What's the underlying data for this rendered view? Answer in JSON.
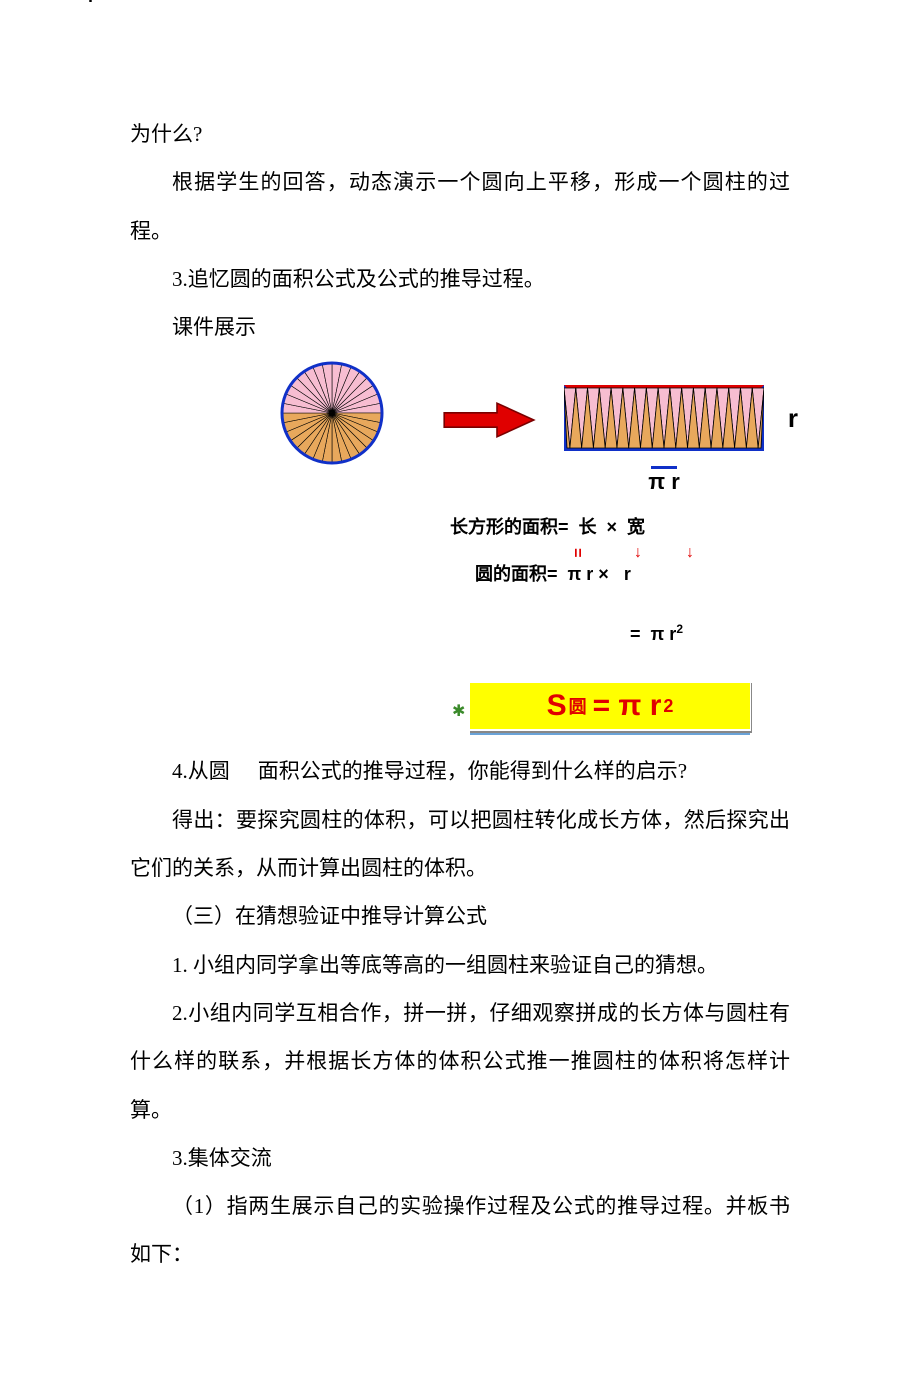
{
  "text": {
    "p1": "为什么?",
    "p2": "根据学生的回答，动态演示一个圆向上平移，形成一个圆柱的过程。",
    "p3": "3.追忆圆的面积公式及公式的推导过程。",
    "p4": "课件展示",
    "p5a": "4.从圆",
    "p5b": "面积公式的推导过程，你能得到什么样的启示?",
    "p6": "得出：要探究圆柱的体积，可以把圆柱转化成长方体，然后探究出它们的关系，从而计算出圆柱的体积。",
    "p7": "（三）在猜想验证中推导计算公式",
    "p8": "1. 小组内同学拿出等底等高的一组圆柱来验证自己的猜想。",
    "p9": "2.小组内同学互相合作，拼一拼，仔细观察拼成的长方体与圆柱有什么样的联系，并根据长方体的体积公式推一推圆柱的体积将怎样计算。",
    "p10": "3.集体交流",
    "p11": "（1）指两生展示自己的实验操作过程及公式的推导过程。并板书如下："
  },
  "diagram": {
    "r_label_top": "r",
    "r_label_right": "r",
    "pi_r_label": "π r",
    "circle": {
      "outer_stroke": "#1030c8",
      "top_fill": "#f7bdd1",
      "bottom_fill": "#e8a85c",
      "slice_stroke": "#000000",
      "sector_count": 32
    },
    "arrow": {
      "fill": "#e00000",
      "stroke": "#7a0000"
    },
    "rect": {
      "border_blue": "#1030c8",
      "border_red_top": "#e00000",
      "top_fill": "#f7bdd1",
      "bottom_fill": "#e8a85c",
      "zigzag_stroke": "#000000",
      "teeth": 17
    }
  },
  "formula": {
    "line1": "长方形的面积=  长  ×  宽",
    "line2": "     圆的面积=  π r ×   r",
    "line3": "=  π r",
    "line3_sup": "2",
    "result_prefix": "S",
    "result_sub": "圆",
    "result_mid": " = π r",
    "result_sup": "2",
    "colors": {
      "text": "#000000",
      "accent": "#e00000",
      "box_bg": "#ffff00",
      "box_text": "#e00000",
      "under_bar": "#6aa3d8",
      "star": "#3a8a2a"
    }
  }
}
